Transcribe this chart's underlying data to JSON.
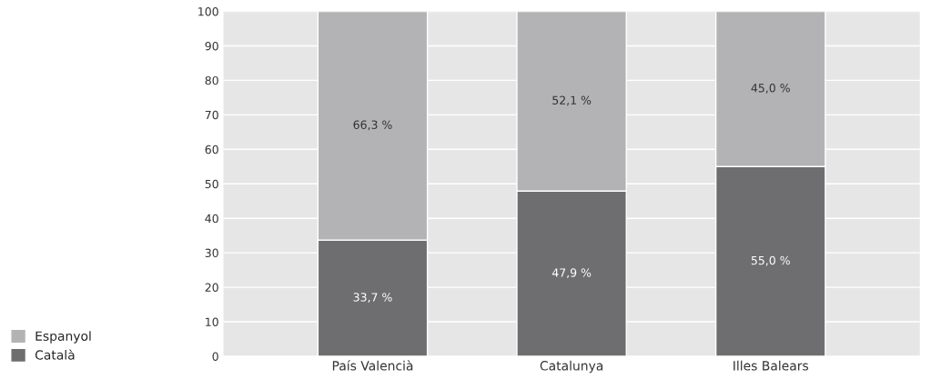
{
  "chart_data": {
    "type": "bar",
    "stacked": true,
    "categories": [
      "País Valencià",
      "Catalunya",
      "Illes Balears"
    ],
    "series": [
      {
        "name": "Català",
        "color": "#6e6e70",
        "values": [
          33.7,
          47.9,
          55.0
        ],
        "value_labels": [
          "33,7 %",
          "47,9 %",
          "55,0 %"
        ]
      },
      {
        "name": "Espanyol",
        "color": "#b3b3b5",
        "values": [
          66.3,
          52.1,
          45.0
        ],
        "value_labels": [
          "66,3 %",
          "52,1 %",
          "45,0 %"
        ]
      }
    ],
    "ylim": [
      0,
      100
    ],
    "yticks": [
      0,
      10,
      20,
      30,
      40,
      50,
      60,
      70,
      80,
      90,
      100
    ],
    "grid": "y",
    "legend": "bottom left"
  }
}
